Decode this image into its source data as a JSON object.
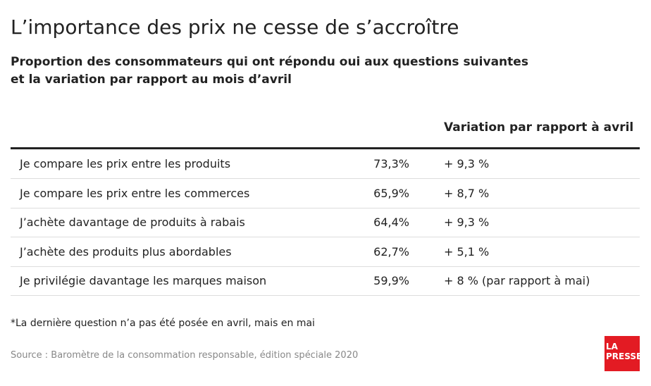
{
  "header": {
    "title": "L’importance des prix ne cesse de s’accroître",
    "subtitle": [
      "Proportion des consommateurs qui ont répondu oui aux questions suivantes",
      "et la variation par rapport au mois d’avril"
    ]
  },
  "table": {
    "header": "Variation par rapport à avril",
    "rows": [
      [
        "Je compare les prix entre les produits",
        "73,3%",
        "+ 9,3 %"
      ],
      [
        "Je compare les prix entre les commerces",
        "65,9%",
        "+ 8,7 %"
      ],
      [
        "J’achète davantage de produits à rabais",
        "64,4%",
        "+ 9,3 %"
      ],
      [
        "J’achète des produits plus abordables",
        "62,7%",
        "+ 5,1 %"
      ],
      [
        "Je privilégie davantage les marques maison",
        "59,9%",
        "+ 8 % (par rapport à mai)"
      ]
    ]
  },
  "footnote": "*La dernière question n’a pas été posée en avril, mais en mai",
  "source": "Source : Baromètre de la consommation responsable, édition spéciale 2020",
  "logo": [
    "LA",
    "PRESSE"
  ]
}
